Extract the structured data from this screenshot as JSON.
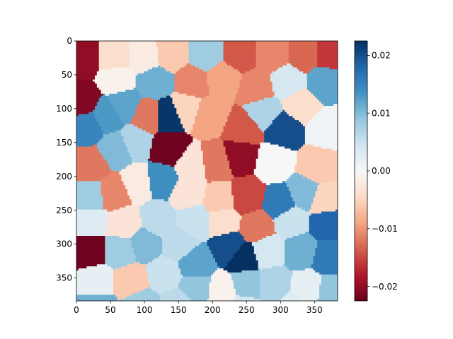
{
  "chart_data": {
    "type": "heatmap",
    "title": "",
    "xlabel": "",
    "ylabel": "",
    "xlim": [
      0,
      384
    ],
    "ylim": [
      384,
      0
    ],
    "x_ticks": [
      "0",
      "50",
      "100",
      "150",
      "200",
      "250",
      "300",
      "350"
    ],
    "y_ticks": [
      "0",
      "50",
      "100",
      "150",
      "200",
      "250",
      "300",
      "350"
    ],
    "colormap": "RdBu",
    "colorbar": {
      "vmin": -0.0225,
      "vmax": 0.0225,
      "ticks": [
        "0.02",
        "0.01",
        "0.00",
        "−0.01",
        "−0.02"
      ],
      "tick_values": [
        0.02,
        0.01,
        0.0,
        -0.01,
        -0.02
      ]
    },
    "regions": [
      {
        "x": 10,
        "y": 25,
        "v": -0.02
      },
      {
        "x": 8,
        "y": 90,
        "v": -0.021
      },
      {
        "x": 58,
        "y": 25,
        "v": -0.004
      },
      {
        "x": 100,
        "y": 25,
        "v": -0.002
      },
      {
        "x": 140,
        "y": 20,
        "v": -0.006
      },
      {
        "x": 190,
        "y": 20,
        "v": 0.008
      },
      {
        "x": 240,
        "y": 20,
        "v": -0.014
      },
      {
        "x": 288,
        "y": 20,
        "v": -0.011
      },
      {
        "x": 335,
        "y": 20,
        "v": -0.013
      },
      {
        "x": 370,
        "y": 20,
        "v": -0.016
      },
      {
        "x": 60,
        "y": 55,
        "v": -0.001
      },
      {
        "x": 115,
        "y": 60,
        "v": 0.011
      },
      {
        "x": 170,
        "y": 60,
        "v": -0.011
      },
      {
        "x": 215,
        "y": 55,
        "v": -0.009
      },
      {
        "x": 265,
        "y": 70,
        "v": -0.011
      },
      {
        "x": 310,
        "y": 60,
        "v": 0.004
      },
      {
        "x": 365,
        "y": 60,
        "v": 0.012
      },
      {
        "x": 15,
        "y": 125,
        "v": 0.015
      },
      {
        "x": 45,
        "y": 110,
        "v": 0.013
      },
      {
        "x": 70,
        "y": 95,
        "v": 0.012
      },
      {
        "x": 105,
        "y": 110,
        "v": -0.012
      },
      {
        "x": 135,
        "y": 110,
        "v": 0.022
      },
      {
        "x": 160,
        "y": 100,
        "v": -0.005
      },
      {
        "x": 195,
        "y": 110,
        "v": -0.009
      },
      {
        "x": 245,
        "y": 130,
        "v": -0.014
      },
      {
        "x": 275,
        "y": 105,
        "v": 0.007
      },
      {
        "x": 305,
        "y": 130,
        "v": 0.02
      },
      {
        "x": 330,
        "y": 95,
        "v": -0.004
      },
      {
        "x": 368,
        "y": 130,
        "v": 0.001
      },
      {
        "x": 20,
        "y": 185,
        "v": -0.012
      },
      {
        "x": 60,
        "y": 160,
        "v": 0.01
      },
      {
        "x": 85,
        "y": 150,
        "v": 0.007
      },
      {
        "x": 135,
        "y": 160,
        "v": -0.022
      },
      {
        "x": 170,
        "y": 185,
        "v": -0.003
      },
      {
        "x": 205,
        "y": 180,
        "v": -0.012
      },
      {
        "x": 240,
        "y": 170,
        "v": -0.02
      },
      {
        "x": 290,
        "y": 180,
        "v": 0.0
      },
      {
        "x": 355,
        "y": 185,
        "v": -0.006
      },
      {
        "x": 20,
        "y": 230,
        "v": 0.008
      },
      {
        "x": 55,
        "y": 225,
        "v": -0.011
      },
      {
        "x": 90,
        "y": 210,
        "v": -0.002
      },
      {
        "x": 125,
        "y": 205,
        "v": 0.014
      },
      {
        "x": 165,
        "y": 225,
        "v": -0.003
      },
      {
        "x": 210,
        "y": 235,
        "v": -0.006
      },
      {
        "x": 250,
        "y": 230,
        "v": -0.015
      },
      {
        "x": 300,
        "y": 240,
        "v": 0.016
      },
      {
        "x": 335,
        "y": 225,
        "v": 0.01
      },
      {
        "x": 365,
        "y": 235,
        "v": -0.005
      },
      {
        "x": 20,
        "y": 265,
        "v": 0.003
      },
      {
        "x": 70,
        "y": 270,
        "v": -0.003
      },
      {
        "x": 120,
        "y": 265,
        "v": 0.006
      },
      {
        "x": 175,
        "y": 265,
        "v": 0.005
      },
      {
        "x": 215,
        "y": 265,
        "v": -0.004
      },
      {
        "x": 265,
        "y": 275,
        "v": -0.012
      },
      {
        "x": 315,
        "y": 265,
        "v": 0.005
      },
      {
        "x": 370,
        "y": 270,
        "v": 0.018
      },
      {
        "x": 20,
        "y": 310,
        "v": -0.022
      },
      {
        "x": 65,
        "y": 310,
        "v": 0.008
      },
      {
        "x": 100,
        "y": 300,
        "v": 0.01
      },
      {
        "x": 150,
        "y": 300,
        "v": 0.006
      },
      {
        "x": 175,
        "y": 330,
        "v": 0.012
      },
      {
        "x": 225,
        "y": 305,
        "v": 0.02
      },
      {
        "x": 245,
        "y": 320,
        "v": 0.023
      },
      {
        "x": 280,
        "y": 310,
        "v": 0.004
      },
      {
        "x": 330,
        "y": 310,
        "v": 0.011
      },
      {
        "x": 370,
        "y": 320,
        "v": 0.016
      },
      {
        "x": 30,
        "y": 355,
        "v": 0.002
      },
      {
        "x": 80,
        "y": 355,
        "v": -0.006
      },
      {
        "x": 130,
        "y": 345,
        "v": 0.005
      },
      {
        "x": 175,
        "y": 365,
        "v": 0.009
      },
      {
        "x": 215,
        "y": 370,
        "v": -0.001
      },
      {
        "x": 250,
        "y": 360,
        "v": 0.009
      },
      {
        "x": 290,
        "y": 360,
        "v": 0.007
      },
      {
        "x": 340,
        "y": 365,
        "v": 0.002
      },
      {
        "x": 375,
        "y": 370,
        "v": 0.009
      },
      {
        "x": 30,
        "y": 395,
        "v": 0.011
      },
      {
        "x": 95,
        "y": 390,
        "v": 0.008
      },
      {
        "x": 150,
        "y": 390,
        "v": 0.006
      },
      {
        "x": 245,
        "y": 395,
        "v": 0.004
      },
      {
        "x": 320,
        "y": 395,
        "v": 0.003
      }
    ]
  }
}
